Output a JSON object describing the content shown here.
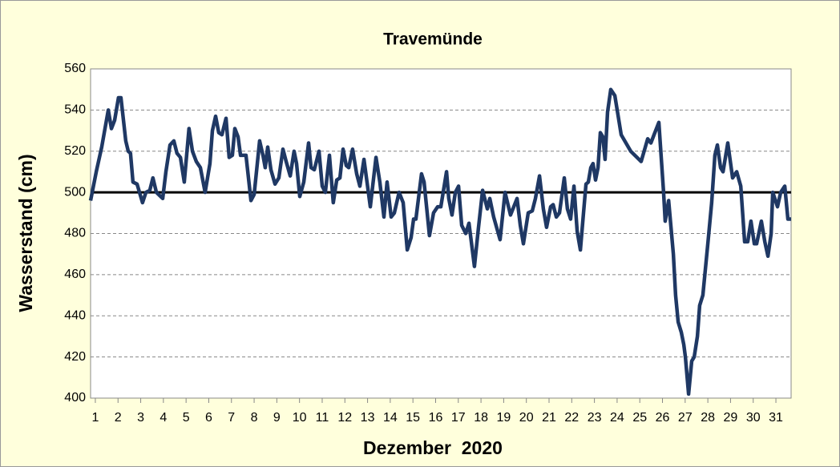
{
  "chart_data": {
    "type": "line",
    "title": "Travemünde",
    "x_label": "Dezember  2020",
    "y_label": "Wasserstand (cm)",
    "x": [
      0.79,
      1.04,
      1.28,
      1.57,
      1.71,
      1.85,
      2.02,
      2.13,
      2.34,
      2.45,
      2.55,
      2.66,
      2.84,
      3.08,
      3.23,
      3.4,
      3.54,
      3.69,
      3.97,
      4.11,
      4.29,
      4.46,
      4.6,
      4.75,
      4.92,
      5.13,
      5.28,
      5.45,
      5.63,
      5.84,
      6.05,
      6.16,
      6.3,
      6.44,
      6.58,
      6.76,
      6.9,
      7.04,
      7.15,
      7.29,
      7.4,
      7.64,
      7.86,
      8.0,
      8.24,
      8.39,
      8.49,
      8.6,
      8.74,
      8.92,
      9.09,
      9.27,
      9.41,
      9.59,
      9.76,
      9.87,
      10.01,
      10.19,
      10.4,
      10.51,
      10.65,
      10.86,
      11.0,
      11.14,
      11.32,
      11.49,
      11.64,
      11.78,
      11.92,
      12.06,
      12.17,
      12.34,
      12.52,
      12.66,
      12.84,
      13.12,
      13.37,
      13.54,
      13.72,
      13.86,
      14.04,
      14.18,
      14.39,
      14.57,
      14.75,
      14.92,
      15.03,
      15.13,
      15.38,
      15.49,
      15.73,
      15.91,
      16.09,
      16.23,
      16.48,
      16.58,
      16.72,
      16.87,
      17.01,
      17.15,
      17.33,
      17.47,
      17.71,
      17.89,
      18.07,
      18.28,
      18.39,
      18.56,
      18.84,
      19.06,
      19.3,
      19.59,
      19.73,
      19.87,
      20.08,
      20.26,
      20.4,
      20.58,
      20.75,
      20.89,
      21.07,
      21.18,
      21.32,
      21.46,
      21.67,
      21.81,
      21.95,
      22.1,
      22.24,
      22.38,
      22.52,
      22.63,
      22.73,
      22.84,
      22.94,
      23.05,
      23.16,
      23.26,
      23.37,
      23.47,
      23.58,
      23.72,
      23.9,
      24.18,
      24.6,
      25.06,
      25.35,
      25.49,
      25.63,
      25.84,
      26.05,
      26.12,
      26.27,
      26.48,
      26.58,
      26.69,
      26.83,
      26.94,
      27.01,
      27.15,
      27.29,
      27.4,
      27.54,
      27.64,
      27.78,
      28.0,
      28.17,
      28.31,
      28.42,
      28.56,
      28.67,
      28.88,
      29.09,
      29.27,
      29.45,
      29.62,
      29.76,
      29.9,
      30.05,
      30.15,
      30.36,
      30.51,
      30.65,
      30.79,
      30.86,
      31.07,
      31.21,
      31.39,
      31.53,
      31.67
    ],
    "series": [
      {
        "color": "#1f3864",
        "values": [
          496,
          510,
          522,
          540,
          531,
          535,
          546,
          546,
          525,
          520,
          519,
          505,
          504,
          495,
          500,
          501,
          507,
          500,
          497,
          510,
          523,
          525,
          519,
          517,
          505,
          531,
          520,
          515,
          512,
          500,
          514,
          530,
          537,
          529,
          528,
          536,
          517,
          518,
          531,
          527,
          518,
          518,
          496,
          499,
          525,
          518,
          512,
          522,
          511,
          504,
          507,
          521,
          515,
          508,
          520,
          514,
          498,
          505,
          524,
          512,
          511,
          520,
          503,
          500,
          518,
          495,
          506,
          507,
          521,
          513,
          512,
          521,
          509,
          503,
          516,
          493,
          517,
          505,
          488,
          505,
          488,
          490,
          500,
          495,
          472,
          478,
          487,
          487,
          509,
          505,
          479,
          490,
          493,
          493,
          510,
          497,
          489,
          500,
          503,
          484,
          480,
          485,
          464,
          483,
          501,
          492,
          497,
          488,
          477,
          500,
          489,
          497,
          484,
          475,
          490,
          491,
          497,
          508,
          492,
          483,
          493,
          494,
          488,
          490,
          507,
          492,
          487,
          503,
          481,
          472,
          490,
          504,
          505,
          512,
          514,
          506,
          512,
          529,
          527,
          516,
          539,
          550,
          547,
          528,
          520,
          515,
          526,
          524,
          528,
          534,
          500,
          486,
          496,
          470,
          450,
          437,
          432,
          426,
          420,
          402,
          418,
          420,
          430,
          445,
          450,
          475,
          495,
          518,
          523,
          512,
          510,
          524,
          507,
          510,
          503,
          476,
          476,
          486,
          475,
          475,
          486,
          476,
          469,
          480,
          500,
          493,
          500,
          503,
          487,
          487
        ]
      }
    ],
    "reference_line": 500,
    "xlim": [
      0.79,
      31.67
    ],
    "xticks": [
      1,
      2,
      3,
      4,
      5,
      6,
      7,
      8,
      9,
      10,
      11,
      12,
      13,
      14,
      15,
      16,
      17,
      18,
      19,
      20,
      21,
      22,
      23,
      24,
      25,
      26,
      27,
      28,
      29,
      30,
      31
    ],
    "ylim": [
      400,
      560
    ],
    "yticks": [
      400,
      420,
      440,
      460,
      480,
      500,
      520,
      540,
      560
    ],
    "grid": true
  }
}
